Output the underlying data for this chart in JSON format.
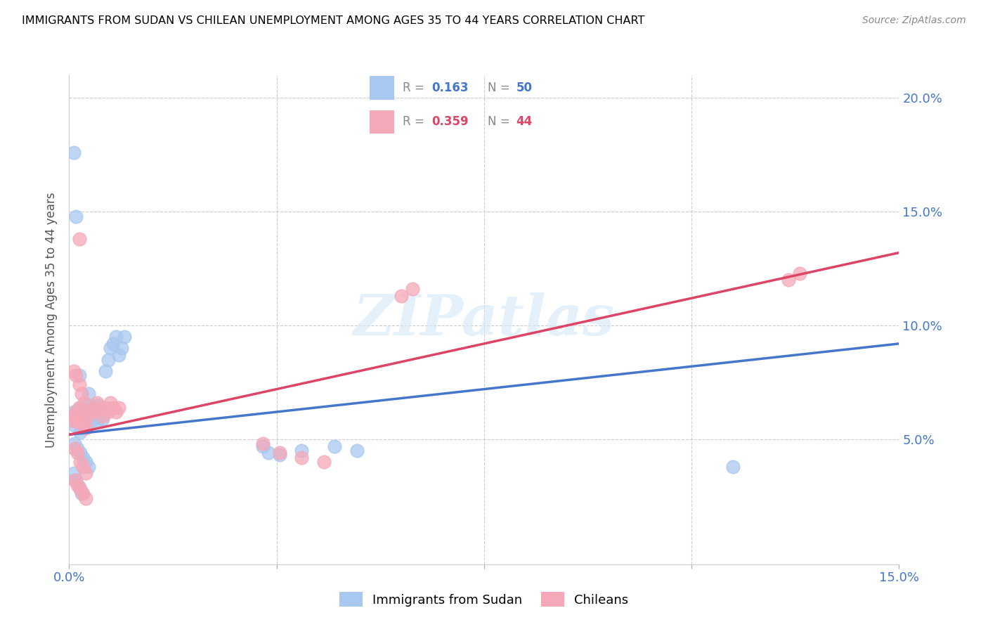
{
  "title": "IMMIGRANTS FROM SUDAN VS CHILEAN UNEMPLOYMENT AMONG AGES 35 TO 44 YEARS CORRELATION CHART",
  "source": "Source: ZipAtlas.com",
  "ylabel": "Unemployment Among Ages 35 to 44 years",
  "xlim": [
    0.0,
    0.15
  ],
  "ylim": [
    -0.005,
    0.21
  ],
  "yticks": [
    0.05,
    0.1,
    0.15,
    0.2
  ],
  "ytick_labels": [
    "5.0%",
    "10.0%",
    "15.0%",
    "20.0%"
  ],
  "xtick_positions": [
    0.0,
    0.0375,
    0.075,
    0.1125,
    0.15
  ],
  "blue_color": "#a8c8f0",
  "pink_color": "#f5a8b8",
  "blue_line_color": "#4477cc",
  "pink_line_color": "#dd4466",
  "legend_label_blue": "Immigrants from Sudan",
  "legend_label_pink": "Chileans",
  "watermark": "ZIPatlas",
  "blue_R": "0.163",
  "blue_N": "50",
  "pink_R": "0.359",
  "pink_N": "44",
  "blue_line_x0": 0.0,
  "blue_line_y0": 0.052,
  "blue_line_x1": 0.15,
  "blue_line_y1": 0.092,
  "pink_line_x0": 0.0,
  "pink_line_y0": 0.052,
  "pink_line_x1": 0.15,
  "pink_line_y1": 0.132,
  "blue_x": [
    0.0008,
    0.001,
    0.0012,
    0.0015,
    0.0018,
    0.002,
    0.0022,
    0.0025,
    0.0028,
    0.003,
    0.0032,
    0.0035,
    0.0038,
    0.004,
    0.0042,
    0.0045,
    0.0048,
    0.005,
    0.0052,
    0.0055,
    0.0058,
    0.006,
    0.0065,
    0.007,
    0.0075,
    0.008,
    0.0085,
    0.009,
    0.0095,
    0.01,
    0.001,
    0.0015,
    0.002,
    0.0025,
    0.003,
    0.0035,
    0.0008,
    0.0012,
    0.0018,
    0.0022,
    0.035,
    0.036,
    0.038,
    0.042,
    0.048,
    0.052,
    0.0008,
    0.0012,
    0.0018,
    0.12
  ],
  "blue_y": [
    0.062,
    0.056,
    0.061,
    0.058,
    0.064,
    0.053,
    0.059,
    0.055,
    0.062,
    0.06,
    0.065,
    0.07,
    0.061,
    0.058,
    0.064,
    0.062,
    0.06,
    0.058,
    0.065,
    0.06,
    0.063,
    0.059,
    0.08,
    0.085,
    0.09,
    0.092,
    0.095,
    0.087,
    0.09,
    0.095,
    0.048,
    0.046,
    0.044,
    0.042,
    0.04,
    0.038,
    0.035,
    0.032,
    0.029,
    0.026,
    0.047,
    0.044,
    0.043,
    0.045,
    0.047,
    0.045,
    0.176,
    0.148,
    0.078,
    0.038
  ],
  "pink_x": [
    0.0008,
    0.001,
    0.0012,
    0.0015,
    0.0018,
    0.002,
    0.0025,
    0.003,
    0.0035,
    0.004,
    0.0045,
    0.005,
    0.0055,
    0.006,
    0.0065,
    0.007,
    0.0075,
    0.008,
    0.0085,
    0.009,
    0.001,
    0.0015,
    0.002,
    0.0025,
    0.003,
    0.001,
    0.0015,
    0.002,
    0.0025,
    0.003,
    0.035,
    0.038,
    0.042,
    0.046,
    0.0008,
    0.0012,
    0.0018,
    0.0022,
    0.0028,
    0.0018,
    0.06,
    0.062,
    0.13,
    0.132
  ],
  "pink_y": [
    0.058,
    0.06,
    0.062,
    0.058,
    0.064,
    0.059,
    0.056,
    0.055,
    0.06,
    0.062,
    0.064,
    0.066,
    0.063,
    0.06,
    0.064,
    0.062,
    0.066,
    0.064,
    0.062,
    0.064,
    0.046,
    0.044,
    0.04,
    0.038,
    0.035,
    0.032,
    0.03,
    0.028,
    0.026,
    0.024,
    0.048,
    0.044,
    0.042,
    0.04,
    0.08,
    0.078,
    0.074,
    0.07,
    0.066,
    0.138,
    0.113,
    0.116,
    0.12,
    0.123
  ]
}
